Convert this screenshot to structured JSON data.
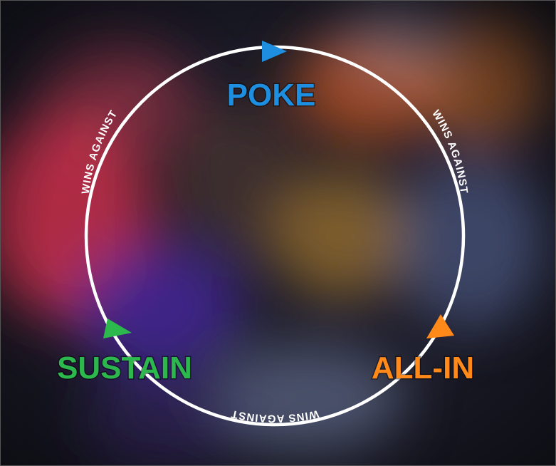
{
  "diagram": {
    "type": "cycle",
    "nodes": [
      {
        "id": "poke",
        "label": "POKE",
        "color": "#1e8fe0"
      },
      {
        "id": "all-in",
        "label": "ALL-IN",
        "color": "#ff8a1a"
      },
      {
        "id": "sustain",
        "label": "SUSTAIN",
        "color": "#2db84d"
      }
    ],
    "edges": [
      {
        "from": "poke",
        "to": "all-in",
        "label": "WINS AGAINST"
      },
      {
        "from": "all-in",
        "to": "sustain",
        "label": "WINS AGAINST"
      },
      {
        "from": "sustain",
        "to": "poke",
        "label": "WINS AGAINST"
      }
    ],
    "ring_color": "#ffffff"
  }
}
